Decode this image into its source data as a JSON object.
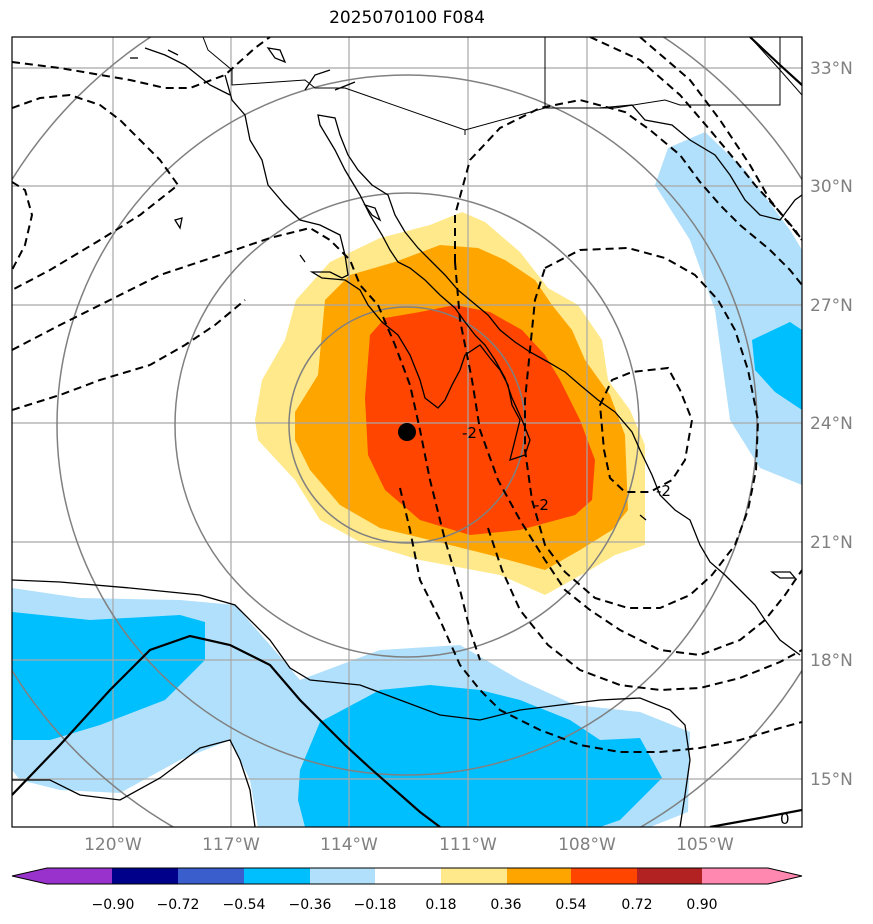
{
  "title": "2025070100 F084",
  "map": {
    "lat_labels": [
      "33°N",
      "30°N",
      "27°N",
      "24°N",
      "21°N",
      "18°N",
      "15°N"
    ],
    "lon_labels": [
      "120°W",
      "117°W",
      "114°W",
      "111°W",
      "108°W",
      "105°W"
    ],
    "contour_labels": {
      "neg": "-2",
      "zero": "0"
    },
    "storm_center": {
      "lat": 23.7,
      "lon": -112.5
    },
    "colors": {
      "pos_018": "#ffe98a",
      "pos_036": "#ffa500",
      "pos_054": "#ff4500",
      "neg_018": "#b0e0fb",
      "neg_036": "#00bfff",
      "grid": "#a8a8a8",
      "circles": "#808080"
    }
  },
  "colorbar": {
    "ticks": [
      "−0.90",
      "−0.72",
      "−0.54",
      "−0.36",
      "−0.18",
      "0.18",
      "0.36",
      "0.54",
      "0.72",
      "0.90"
    ],
    "colors": [
      "#9932cc",
      "#00008b",
      "#3a5fcd",
      "#00bfff",
      "#b0e0fb",
      "#ffffff",
      "#ffe98a",
      "#ffa500",
      "#ff4500",
      "#b22222",
      "#ff88b0"
    ]
  }
}
